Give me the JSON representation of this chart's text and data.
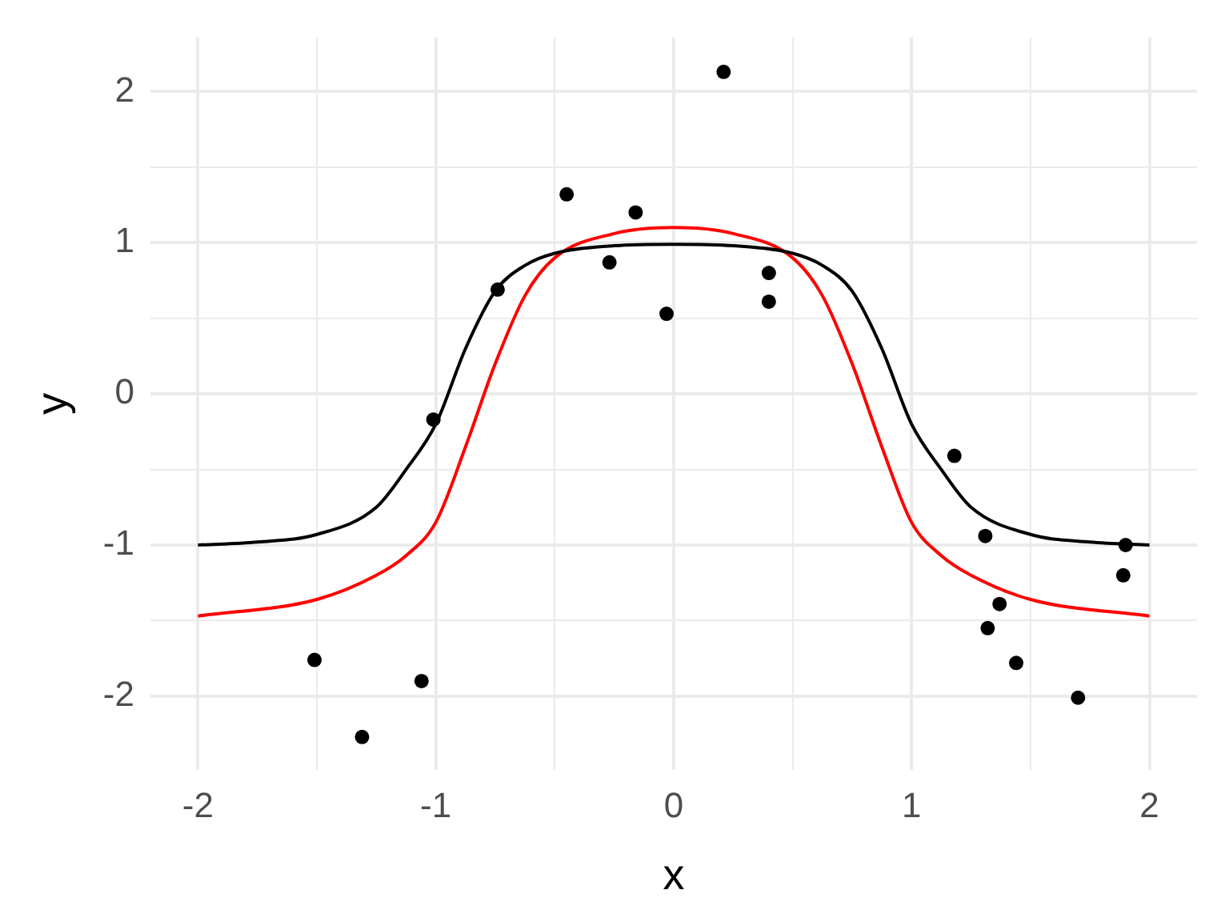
{
  "chart_data": {
    "type": "scatter",
    "xlabel": "x",
    "ylabel": "y",
    "xlim": [
      -2.2,
      2.2
    ],
    "ylim": [
      -2.49,
      2.36
    ],
    "xticks": [
      -2,
      {
        "value": -1.5,
        "label": null
      },
      -1,
      {
        "value": -0.5,
        "label": null
      },
      0,
      {
        "value": 0.5,
        "label": null
      },
      1,
      {
        "value": 1.5,
        "label": null
      },
      2
    ],
    "yticks": [
      -2,
      {
        "value": -1.5,
        "label": null
      },
      -1,
      {
        "value": -0.5,
        "label": null
      },
      0,
      {
        "value": 0.5,
        "label": null
      },
      1,
      {
        "value": 1.5,
        "label": null
      },
      2
    ],
    "grid": true,
    "legend": false,
    "series": [
      {
        "type": "scatter",
        "color": "#000000",
        "marker": "circle",
        "x": [
          -1.51,
          -1.31,
          -1.06,
          -1.01,
          -0.74,
          -0.45,
          -0.27,
          -0.16,
          -0.03,
          0.21,
          0.4,
          0.4,
          1.18,
          1.31,
          1.37,
          1.32,
          1.44,
          1.7,
          1.9,
          1.89
        ],
        "values": [
          -1.76,
          -2.27,
          -1.9,
          -0.17,
          0.69,
          1.32,
          0.87,
          1.2,
          0.53,
          2.13,
          0.8,
          0.61,
          -0.41,
          -0.94,
          -1.39,
          -1.55,
          -1.78,
          -2.01,
          -1.0,
          -1.2
        ]
      },
      {
        "type": "line",
        "color": "#000000",
        "marker": "none",
        "x": [
          -2,
          -1.75,
          -1.5,
          -1.25,
          -1.125,
          -1,
          -0.875,
          -0.75,
          -0.625,
          -0.5,
          -0.25,
          0,
          0.25,
          0.5,
          0.625,
          0.75,
          0.875,
          1,
          1.125,
          1.25,
          1.5,
          1.75,
          2
        ],
        "values": [
          -1.0,
          -0.98,
          -0.93,
          -0.75,
          -0.5,
          -0.2,
          0.3,
          0.68,
          0.85,
          0.93,
          0.98,
          0.99,
          0.98,
          0.93,
          0.85,
          0.68,
          0.3,
          -0.2,
          -0.5,
          -0.75,
          -0.93,
          -0.98,
          -1.0
        ]
      },
      {
        "type": "line",
        "color": "#ff0000",
        "marker": "none",
        "x": [
          -2,
          -1.5,
          -1.25,
          -1.125,
          -1,
          -0.875,
          -0.75,
          -0.625,
          -0.5,
          -0.25,
          0,
          0.25,
          0.5,
          0.625,
          0.75,
          0.875,
          1,
          1.125,
          1.25,
          1.5,
          2
        ],
        "values": [
          -1.47,
          -1.36,
          -1.2,
          -1.07,
          -0.85,
          -0.35,
          0.2,
          0.65,
          0.9,
          1.06,
          1.1,
          1.06,
          0.9,
          0.65,
          0.2,
          -0.35,
          -0.85,
          -1.07,
          -1.2,
          -1.36,
          -1.47
        ]
      }
    ]
  }
}
